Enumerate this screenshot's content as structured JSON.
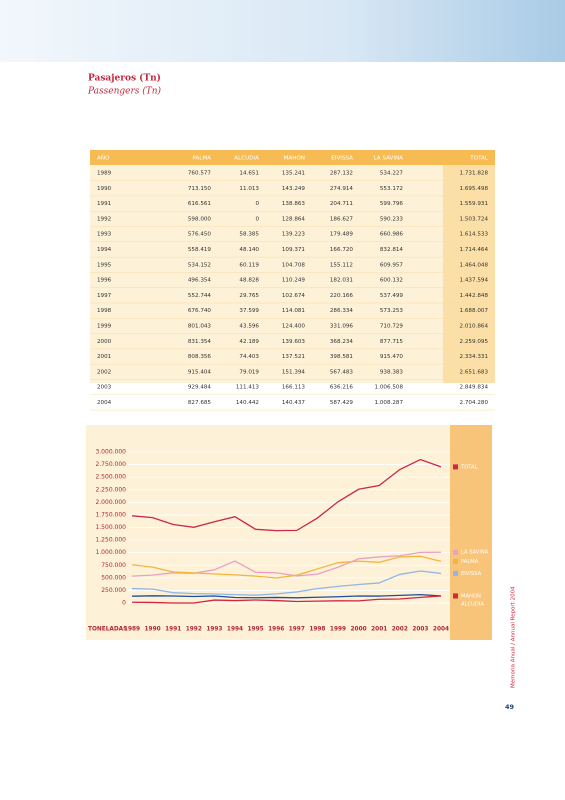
{
  "header": {
    "title": "Pasajeros (Tn)",
    "subtitle": "Passengers (Tn)"
  },
  "table": {
    "columns": [
      "AÑO",
      "PALMA",
      "ALCUDIA",
      "MAHON",
      "EIVISSA",
      "LA SAVINA",
      "TOTAL"
    ],
    "rows": [
      [
        "1989",
        "760.577",
        "14.651",
        "135.241",
        "287.132",
        "534.227",
        "1.731.828"
      ],
      [
        "1990",
        "713.150",
        "11.013",
        "143.249",
        "274.914",
        "553.172",
        "1.695.498"
      ],
      [
        "1991",
        "616.561",
        "0",
        "138.863",
        "204.711",
        "599.796",
        "1.559.931"
      ],
      [
        "1992",
        "598.000",
        "0",
        "128.864",
        "186.627",
        "590.233",
        "1.503.724"
      ],
      [
        "1993",
        "576.450",
        "58.385",
        "139.223",
        "179.489",
        "660.986",
        "1.614.533"
      ],
      [
        "1994",
        "558.419",
        "48.140",
        "109.371",
        "166.720",
        "832.814",
        "1.714.464"
      ],
      [
        "1995",
        "534.152",
        "60.119",
        "104.708",
        "155.112",
        "609.957",
        "1.464.048"
      ],
      [
        "1996",
        "496.354",
        "48.828",
        "110.249",
        "182.031",
        "600.132",
        "1.437.594"
      ],
      [
        "1997",
        "552.744",
        "29.765",
        "102.674",
        "220.166",
        "537.499",
        "1.442.848"
      ],
      [
        "1998",
        "676.740",
        "37.599",
        "114.081",
        "286.334",
        "573.253",
        "1.688.007"
      ],
      [
        "1999",
        "801.043",
        "43.596",
        "124.400",
        "331.096",
        "710.729",
        "2.010.864"
      ],
      [
        "2000",
        "831.354",
        "42.189",
        "139.603",
        "368.234",
        "877.715",
        "2.259.095"
      ],
      [
        "2001",
        "808.356",
        "74.403",
        "137.521",
        "398.581",
        "915.470",
        "2.334.331"
      ],
      [
        "2002",
        "915.404",
        "79.019",
        "151.394",
        "567.483",
        "938.383",
        "2.651.683"
      ],
      [
        "2003",
        "929.484",
        "111.413",
        "166.113",
        "636.216",
        "1.006.508",
        "2.849.834"
      ],
      [
        "2004",
        "827.685",
        "140.442",
        "140.437",
        "587.429",
        "1.008.287",
        "2.704.280"
      ]
    ]
  },
  "chart_data": {
    "type": "line",
    "x_label": "TONELADAS",
    "categories": [
      "1989",
      "1990",
      "1991",
      "1992",
      "1993",
      "1994",
      "1995",
      "1996",
      "1997",
      "1998",
      "1999",
      "2000",
      "2001",
      "2002",
      "2003",
      "2004"
    ],
    "ylim": [
      0,
      3000000
    ],
    "yticks": [
      0,
      {
        "value": 250000,
        "label": "250.000"
      },
      {
        "value": 500000,
        "label": "500.000"
      },
      {
        "value": 750000,
        "label": "750.000"
      },
      {
        "value": 1000000,
        "label": "1.000.000"
      },
      {
        "value": 1250000,
        "label": "1.250.000"
      },
      {
        "value": 1500000,
        "label": "1.500.000"
      },
      {
        "value": 1750000,
        "label": "1.750.000"
      },
      {
        "value": 2000000,
        "label": "2.000.000"
      },
      {
        "value": 2250000,
        "label": "2.250.000"
      },
      {
        "value": 2500000,
        "label": "2.500.000"
      },
      {
        "value": 2750000,
        "label": "2.750.000"
      },
      {
        "value": 3000000,
        "label": "3.000.000"
      }
    ],
    "grid": true,
    "series": [
      {
        "name": "TOTAL",
        "color": "#c8284a",
        "values": [
          1731828,
          1695498,
          1559931,
          1503724,
          1614533,
          1714464,
          1464048,
          1437594,
          1442848,
          1688007,
          2010864,
          2259095,
          2334331,
          2651683,
          2849834,
          2704280
        ]
      },
      {
        "name": "LA SAVINA",
        "color": "#e9a0c6",
        "values": [
          534227,
          553172,
          599796,
          590233,
          660986,
          832814,
          609957,
          600132,
          537499,
          573253,
          710729,
          877715,
          915470,
          938383,
          1006508,
          1008287
        ]
      },
      {
        "name": "PALMA",
        "color": "#f2b63e",
        "values": [
          760577,
          713150,
          616561,
          598000,
          576450,
          558419,
          534152,
          496354,
          552744,
          676740,
          801043,
          831354,
          808356,
          915404,
          929484,
          827685
        ]
      },
      {
        "name": "EIVISSA",
        "color": "#92b6e2",
        "values": [
          287132,
          274914,
          204711,
          186627,
          179489,
          166720,
          155112,
          182031,
          220166,
          286334,
          331096,
          368234,
          398581,
          567483,
          636216,
          587429
        ]
      },
      {
        "name": "MAHON",
        "color": "#1f4f9a",
        "values": [
          135241,
          143249,
          138863,
          128864,
          139223,
          109371,
          104708,
          110249,
          102674,
          114081,
          124400,
          139603,
          137521,
          151394,
          166113,
          140437
        ]
      },
      {
        "name": "ALCUDIA",
        "color": "#d3283a",
        "values": [
          14651,
          11013,
          0,
          0,
          58385,
          48140,
          60119,
          48828,
          29765,
          37599,
          43596,
          42189,
          74403,
          79019,
          111413,
          140442
        ]
      }
    ]
  },
  "footer": {
    "side_text": "Memoria Anual / Annual Report 2004",
    "page_number": "49"
  }
}
